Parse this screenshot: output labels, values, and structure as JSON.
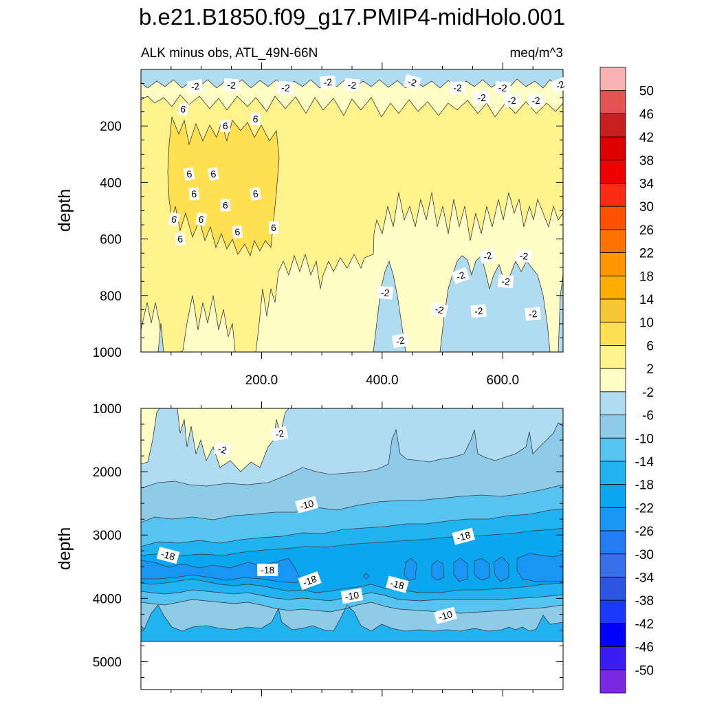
{
  "title": "b.e21.B1850.f09_g17.PMIP4-midHolo.001",
  "subtitle_left": "ALK minus obs, ATL_49N-66N",
  "subtitle_right": "meq/m^3",
  "chart_data": [
    {
      "type": "contour",
      "panel": "upper",
      "xlabel": "",
      "ylabel": "depth",
      "xlim": [
        0,
        700
      ],
      "ylim": [
        1000,
        0
      ],
      "xticks": [
        200,
        400,
        600
      ],
      "xtick_labels": [
        "200.0",
        "400.0",
        "600.0"
      ],
      "yticks": [
        200,
        400,
        600,
        800,
        1000
      ],
      "ytick_labels": [
        "200",
        "400",
        "600",
        "800",
        "1000"
      ],
      "contour_labels": [
        {
          "text": "-2",
          "x": 90,
          "y": 60
        },
        {
          "text": "-2",
          "x": 150,
          "y": 55
        },
        {
          "text": "-2",
          "x": 240,
          "y": 65
        },
        {
          "text": "-2",
          "x": 310,
          "y": 45
        },
        {
          "text": "-2",
          "x": 350,
          "y": 55
        },
        {
          "text": "-2",
          "x": 450,
          "y": 45
        },
        {
          "text": "-2",
          "x": 525,
          "y": 65
        },
        {
          "text": "-2",
          "x": 565,
          "y": 100
        },
        {
          "text": "-2",
          "x": 600,
          "y": 65
        },
        {
          "text": "-2",
          "x": 615,
          "y": 110
        },
        {
          "text": "-2",
          "x": 655,
          "y": 110
        },
        {
          "text": "-2",
          "x": 695,
          "y": 55
        },
        {
          "text": "6",
          "x": 70,
          "y": 140
        },
        {
          "text": "6",
          "x": 140,
          "y": 200
        },
        {
          "text": "6",
          "x": 190,
          "y": 175
        },
        {
          "text": "6",
          "x": 80,
          "y": 370
        },
        {
          "text": "6",
          "x": 120,
          "y": 370
        },
        {
          "text": "6",
          "x": 88,
          "y": 440
        },
        {
          "text": "6",
          "x": 190,
          "y": 440
        },
        {
          "text": "6",
          "x": 140,
          "y": 480
        },
        {
          "text": "6",
          "x": 55,
          "y": 530
        },
        {
          "text": "6",
          "x": 100,
          "y": 530
        },
        {
          "text": "6",
          "x": 220,
          "y": 560
        },
        {
          "text": "6",
          "x": 160,
          "y": 575
        },
        {
          "text": "6",
          "x": 65,
          "y": 600
        },
        {
          "text": "-2",
          "x": 405,
          "y": 790
        },
        {
          "text": "-2",
          "x": 575,
          "y": 660
        },
        {
          "text": "-2",
          "x": 530,
          "y": 730
        },
        {
          "text": "-2",
          "x": 635,
          "y": 660
        },
        {
          "text": "-2",
          "x": 605,
          "y": 750
        },
        {
          "text": "-2",
          "x": 495,
          "y": 850
        },
        {
          "text": "-2",
          "x": 560,
          "y": 855
        },
        {
          "text": "-2",
          "x": 650,
          "y": 865
        },
        {
          "text": "-2",
          "x": 430,
          "y": 960
        }
      ]
    },
    {
      "type": "contour",
      "panel": "lower",
      "xlabel": "",
      "ylabel": "depth",
      "xlim": [
        0,
        700
      ],
      "ylim": [
        5440,
        1000
      ],
      "yticks": [
        1000,
        2000,
        3000,
        4000,
        5000
      ],
      "ytick_labels": [
        "1000",
        "2000",
        "3000",
        "4000",
        "5000"
      ],
      "data_bottom_depth": 4620,
      "contour_labels": [
        {
          "text": "-2",
          "x": 230,
          "y": 1400
        },
        {
          "text": "-2",
          "x": 135,
          "y": 1650
        },
        {
          "text": "-10",
          "x": 275,
          "y": 2520
        },
        {
          "text": "-18",
          "x": 535,
          "y": 3020
        },
        {
          "text": "-18",
          "x": 45,
          "y": 3320
        },
        {
          "text": "-18",
          "x": 210,
          "y": 3550
        },
        {
          "text": "-18",
          "x": 280,
          "y": 3720
        },
        {
          "text": "-10",
          "x": 350,
          "y": 3960
        },
        {
          "text": "-18",
          "x": 425,
          "y": 3780
        },
        {
          "text": "-10",
          "x": 505,
          "y": 4270
        }
      ]
    }
  ],
  "colorbar": {
    "labels": [
      "50",
      "46",
      "42",
      "38",
      "34",
      "30",
      "26",
      "22",
      "18",
      "14",
      "10",
      "6",
      "2",
      "-2",
      "-6",
      "-10",
      "-14",
      "-18",
      "-22",
      "-26",
      "-30",
      "-34",
      "-38",
      "-42",
      "-46",
      "-50"
    ],
    "colors": [
      "#f9b2b4",
      "#e25452",
      "#c8201e",
      "#dd0000",
      "#ed0000",
      "#ff2a14",
      "#ff5000",
      "#ff7200",
      "#ff9500",
      "#ffad00",
      "#f6c633",
      "#ffe050",
      "#fef28c",
      "#fefdc6",
      "#b0dcf2",
      "#8ecbe9",
      "#57c3f0",
      "#20b2f1",
      "#0aa6f0",
      "#1995f4",
      "#237cf1",
      "#3770e9",
      "#2b56e2",
      "#1a39f8",
      "#0000ff",
      "#3b1cf2",
      "#7a28e6"
    ]
  }
}
